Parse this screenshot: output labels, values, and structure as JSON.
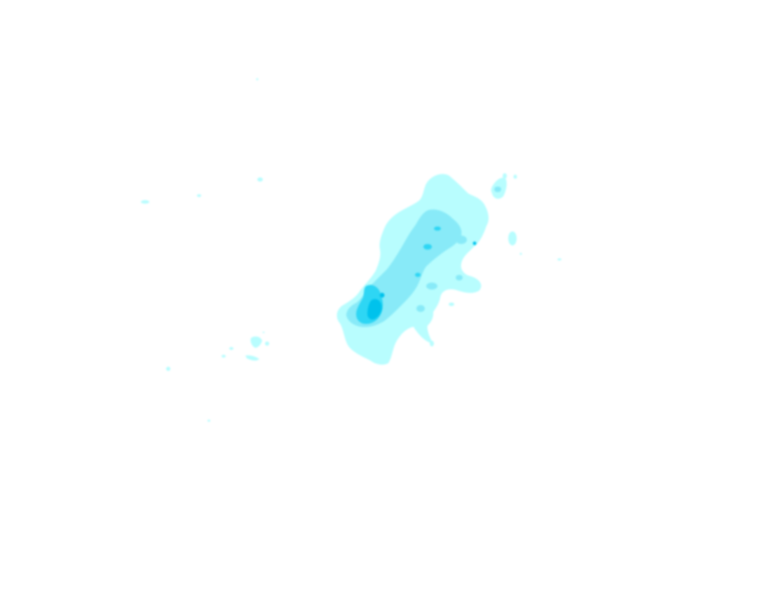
{
  "overlay": {
    "type": "precipitation-radar",
    "background_color": "#ffffff",
    "intensity_colors": {
      "light": "#b8fdfe",
      "moderate": "#88eaf8",
      "heavy": "#2fd6f4",
      "very_heavy": "#00c2ec"
    }
  }
}
